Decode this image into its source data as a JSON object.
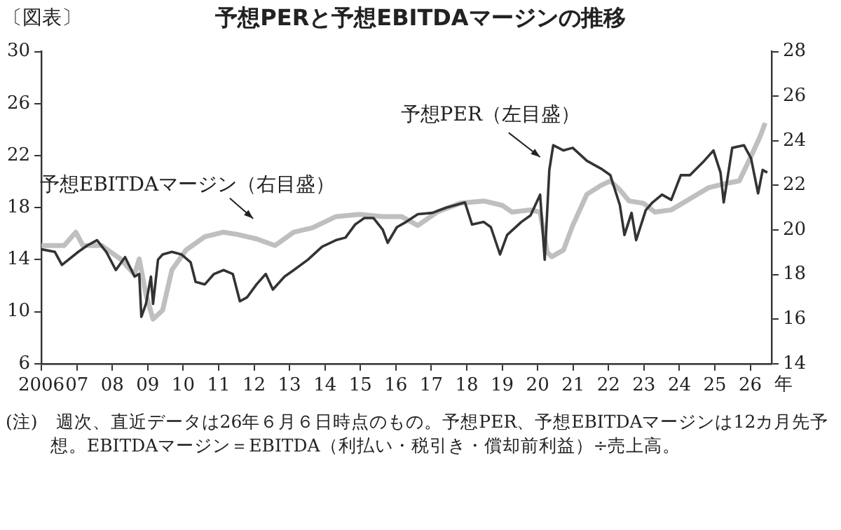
{
  "chart_data": {
    "type": "line",
    "title": "予想PERと予想EBITDAマージンの推移",
    "subtitle": "〔図表〕",
    "xlabel": "年",
    "xlim": [
      2006,
      2026.6
    ],
    "xticks": [
      {
        "value": 2006,
        "label": "2006"
      },
      {
        "value": 2007,
        "label": "07"
      },
      {
        "value": 2008,
        "label": "08"
      },
      {
        "value": 2009,
        "label": "09"
      },
      {
        "value": 2010,
        "label": "10"
      },
      {
        "value": 2011,
        "label": "11"
      },
      {
        "value": 2012,
        "label": "12"
      },
      {
        "value": 2013,
        "label": "13"
      },
      {
        "value": 2014,
        "label": "14"
      },
      {
        "value": 2015,
        "label": "15"
      },
      {
        "value": 2016,
        "label": "16"
      },
      {
        "value": 2017,
        "label": "17"
      },
      {
        "value": 2018,
        "label": "18"
      },
      {
        "value": 2019,
        "label": "19"
      },
      {
        "value": 2020,
        "label": "20"
      },
      {
        "value": 2021,
        "label": "21"
      },
      {
        "value": 2022,
        "label": "22"
      },
      {
        "value": 2023,
        "label": "23"
      },
      {
        "value": 2024,
        "label": "24"
      },
      {
        "value": 2025,
        "label": "25"
      },
      {
        "value": 2026,
        "label": "26"
      }
    ],
    "ylim": [
      6,
      30
    ],
    "yticks": [
      6,
      10,
      14,
      18,
      22,
      26,
      30
    ],
    "y2lim": [
      14,
      28
    ],
    "y2ticks": [
      14,
      16,
      18,
      20,
      22,
      24,
      26,
      28
    ],
    "series": [
      {
        "color": "#333333",
        "x": [
          2006.0,
          2006.38,
          2006.58,
          2007.04,
          2007.3,
          2007.57,
          2007.83,
          2008.1,
          2008.36,
          2008.63,
          2008.76,
          2008.82,
          2008.95,
          2009.09,
          2009.15,
          2009.29,
          2009.42,
          2009.68,
          2009.95,
          2010.21,
          2010.35,
          2010.61,
          2010.87,
          2011.14,
          2011.4,
          2011.6,
          2011.8,
          2012.07,
          2012.33,
          2012.53,
          2012.86,
          2013.12,
          2013.52,
          2013.92,
          2014.31,
          2014.58,
          2014.85,
          2015.11,
          2015.37,
          2015.63,
          2015.77,
          2016.03,
          2016.29,
          2016.62,
          2017.03,
          2017.42,
          2017.95,
          2018.15,
          2018.48,
          2018.68,
          2018.94,
          2019.14,
          2019.54,
          2019.8,
          2020.07,
          2020.2,
          2020.33,
          2020.44,
          2020.73,
          2020.99,
          2021.39,
          2021.79,
          2022.05,
          2022.32,
          2022.45,
          2022.65,
          2022.78,
          2023.05,
          2023.24,
          2023.51,
          2023.77,
          2024.04,
          2024.3,
          2024.7,
          2024.96,
          2025.16,
          2025.25,
          2025.49,
          2025.82,
          2026.02,
          2026.22,
          2026.35,
          2026.48
        ],
        "values": [
          14.8,
          14.6,
          13.6,
          14.6,
          15.1,
          15.5,
          14.6,
          13.2,
          14.2,
          12.7,
          12.9,
          9.6,
          10.6,
          12.7,
          10.6,
          14.0,
          14.4,
          14.6,
          14.4,
          13.8,
          12.3,
          12.1,
          12.9,
          13.2,
          12.9,
          10.8,
          11.1,
          12.1,
          12.9,
          11.7,
          12.7,
          13.2,
          14.0,
          15.0,
          15.5,
          15.7,
          16.7,
          17.2,
          17.2,
          16.3,
          15.3,
          16.5,
          16.9,
          17.5,
          17.6,
          18.0,
          18.4,
          16.7,
          16.9,
          16.5,
          14.4,
          15.9,
          16.9,
          17.4,
          19.0,
          14.0,
          20.9,
          22.8,
          22.4,
          22.6,
          21.6,
          21.0,
          20.5,
          18.2,
          15.9,
          17.6,
          15.5,
          17.8,
          18.4,
          19.0,
          18.6,
          20.5,
          20.5,
          21.6,
          22.4,
          20.7,
          18.4,
          22.6,
          22.8,
          21.8,
          19.1,
          20.9,
          20.7
        ]
      },
      {
        "color": "#bfbfbf",
        "axis": "y2",
        "x": [
          2006.0,
          2006.64,
          2006.97,
          2007.17,
          2007.7,
          2008.23,
          2008.63,
          2008.76,
          2008.95,
          2009.15,
          2009.42,
          2009.68,
          2010.08,
          2010.61,
          2011.14,
          2011.53,
          2012.07,
          2012.59,
          2013.12,
          2013.65,
          2014.31,
          2014.97,
          2015.63,
          2016.16,
          2016.62,
          2017.16,
          2017.82,
          2018.48,
          2019.01,
          2019.28,
          2019.8,
          2020.07,
          2020.27,
          2020.4,
          2020.73,
          2020.99,
          2021.39,
          2021.79,
          2022.05,
          2022.32,
          2022.58,
          2022.98,
          2023.31,
          2023.77,
          2024.3,
          2024.83,
          2025.36,
          2025.69,
          2026.02,
          2026.28,
          2026.42
        ],
        "values": [
          19.3,
          19.3,
          19.9,
          19.3,
          19.3,
          18.7,
          18.0,
          18.7,
          17.1,
          16.0,
          16.4,
          18.2,
          19.1,
          19.7,
          19.9,
          19.8,
          19.6,
          19.3,
          19.9,
          20.1,
          20.6,
          20.7,
          20.6,
          20.6,
          20.2,
          20.8,
          21.2,
          21.3,
          21.1,
          20.8,
          20.9,
          20.8,
          19.0,
          18.8,
          19.1,
          20.2,
          21.6,
          22.0,
          22.2,
          21.8,
          21.3,
          21.2,
          20.8,
          20.9,
          21.4,
          21.9,
          22.1,
          22.2,
          23.3,
          24.2,
          24.8
        ]
      }
    ],
    "annotations": [
      "予想PER（左目盛）",
      "予想EBITDAマージン（右目盛）",
      "(注)　週次、直近データは26年６月６日時点のもの。予想PER、予想EBITDAマージンは12カ月先予想。EBITDAマージン＝EBITDA（利払い・税引き・償却前利益）÷売上高。"
    ]
  }
}
